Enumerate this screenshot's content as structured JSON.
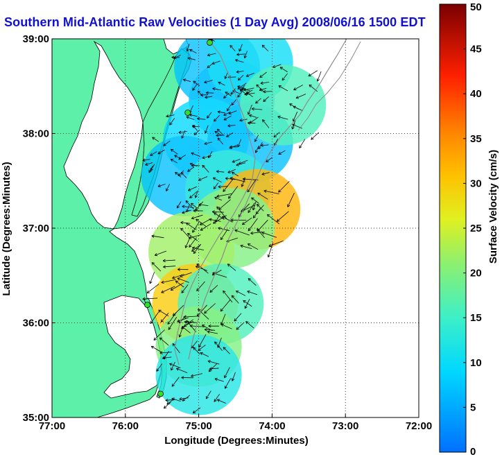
{
  "title": "Southern Mid-Atlantic Raw Velocities (1 Day Avg) 2008/06/16 1500 EDT",
  "map": {
    "x_axis_label": "Longitude (Degrees:Minutes)",
    "y_axis_label": "Latitude (Degrees:Minutes)",
    "lon_range": [
      -77,
      -72
    ],
    "lat_range": [
      35,
      39
    ],
    "x_ticks": [
      {
        "value": -77,
        "label": "77:00"
      },
      {
        "value": -76,
        "label": "76:00"
      },
      {
        "value": -75,
        "label": "75:00"
      },
      {
        "value": -74,
        "label": "74:00"
      },
      {
        "value": -73,
        "label": "73:00"
      },
      {
        "value": -72,
        "label": "72:00"
      }
    ],
    "y_ticks": [
      {
        "value": 35,
        "label": "35:00"
      },
      {
        "value": 36,
        "label": "36:00"
      },
      {
        "value": 37,
        "label": "37:00"
      },
      {
        "value": 38,
        "label": "38:00"
      },
      {
        "value": 39,
        "label": "39:00"
      }
    ],
    "grid": "dotted",
    "land_color": "#5cf0a8",
    "coastline_color": "#000000",
    "isobath_color": "#8c8c8c",
    "radar_sites": [
      {
        "lon": -74.85,
        "lat": 38.96
      },
      {
        "lon": -75.15,
        "lat": 38.22
      },
      {
        "lon": -75.7,
        "lat": 36.19
      },
      {
        "lon": -75.52,
        "lat": 35.25
      }
    ]
  },
  "colorbar": {
    "label": "Surface Velocity (cm/s)",
    "min": 0,
    "max": 50,
    "ticks": [
      {
        "value": 0,
        "label": "0"
      },
      {
        "value": 5,
        "label": "5"
      },
      {
        "value": 10,
        "label": "10"
      },
      {
        "value": 15,
        "label": "15"
      },
      {
        "value": 20,
        "label": "20"
      },
      {
        "value": 25,
        "label": "25"
      },
      {
        "value": 30,
        "label": "30"
      },
      {
        "value": 35,
        "label": "35"
      },
      {
        "value": 40,
        "label": "40"
      },
      {
        "value": 45,
        "label": "45"
      },
      {
        "value": 50,
        "label": "50"
      }
    ],
    "colormap": "jet"
  },
  "velocity_regions": [
    {
      "lon": -74.55,
      "lat": 38.35,
      "speed": 6
    },
    {
      "lon": -74.75,
      "lat": 38.7,
      "speed": 7
    },
    {
      "lon": -74.3,
      "lat": 38.75,
      "speed": 10
    },
    {
      "lon": -74.9,
      "lat": 37.95,
      "speed": 9
    },
    {
      "lon": -74.3,
      "lat": 37.9,
      "speed": 7
    },
    {
      "lon": -75.2,
      "lat": 37.55,
      "speed": 7
    },
    {
      "lon": -74.6,
      "lat": 37.4,
      "speed": 13
    },
    {
      "lon": -73.85,
      "lat": 38.3,
      "speed": 16
    },
    {
      "lon": -74.2,
      "lat": 37.2,
      "speed": 32
    },
    {
      "lon": -74.55,
      "lat": 37.0,
      "speed": 20
    },
    {
      "lon": -75.1,
      "lat": 36.75,
      "speed": 22
    },
    {
      "lon": -75.05,
      "lat": 36.2,
      "speed": 30
    },
    {
      "lon": -74.7,
      "lat": 36.2,
      "speed": 16
    },
    {
      "lon": -75.0,
      "lat": 35.75,
      "speed": 20
    },
    {
      "lon": -75.0,
      "lat": 35.45,
      "speed": 12
    }
  ]
}
